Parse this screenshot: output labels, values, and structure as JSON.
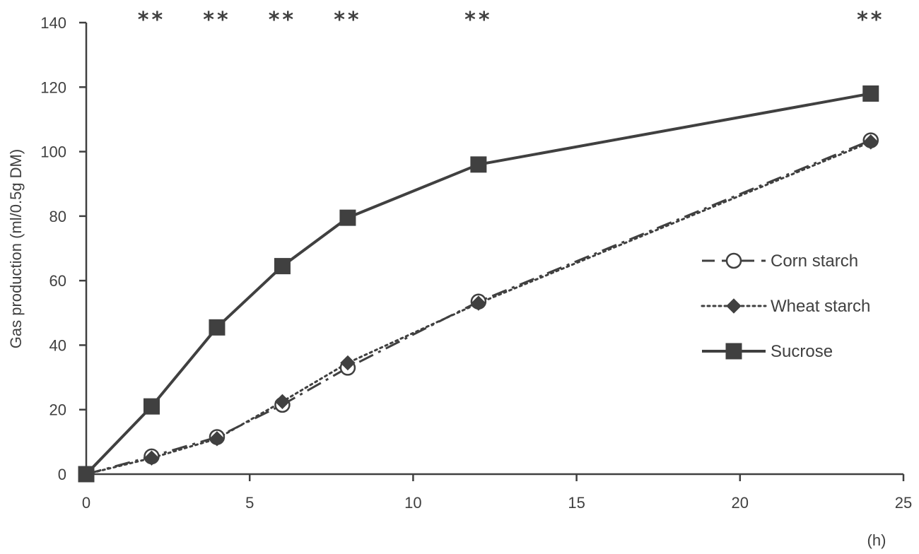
{
  "chart_data": {
    "type": "line",
    "title": "",
    "xlabel": "(h)",
    "ylabel": "Gas production (ml/0.5g DM)",
    "xlim": [
      0,
      25
    ],
    "ylim": [
      0,
      140
    ],
    "x_ticks": [
      0,
      5,
      10,
      15,
      20,
      25
    ],
    "y_ticks": [
      0,
      20,
      40,
      60,
      80,
      100,
      120,
      140
    ],
    "grid": false,
    "legend_position": "right",
    "colors": {
      "axis": "#404040",
      "series": "#404040",
      "marker_fill_open": "#ffffff"
    },
    "series": [
      {
        "name": "Corn starch",
        "line_style": "dash-dot",
        "marker": "open-circle",
        "x": [
          0,
          2,
          4,
          6,
          8,
          12,
          24
        ],
        "y": [
          0,
          5.5,
          11.5,
          21.5,
          33,
          53.5,
          103.5
        ]
      },
      {
        "name": "Wheat starch",
        "line_style": "dotted",
        "marker": "filled-diamond",
        "x": [
          0,
          2,
          4,
          6,
          8,
          12,
          24
        ],
        "y": [
          0,
          5,
          11,
          22.5,
          34.5,
          53,
          103
        ]
      },
      {
        "name": "Sucrose",
        "line_style": "solid",
        "marker": "filled-square",
        "x": [
          0,
          2,
          4,
          6,
          8,
          12,
          24
        ],
        "y": [
          0,
          21,
          45.5,
          64.5,
          79.5,
          96,
          118
        ]
      }
    ],
    "annotations": [
      {
        "x": 2,
        "text": "**"
      },
      {
        "x": 4,
        "text": "**"
      },
      {
        "x": 6,
        "text": "**"
      },
      {
        "x": 8,
        "text": "**"
      },
      {
        "x": 12,
        "text": "**"
      },
      {
        "x": 24,
        "text": "**"
      }
    ]
  }
}
